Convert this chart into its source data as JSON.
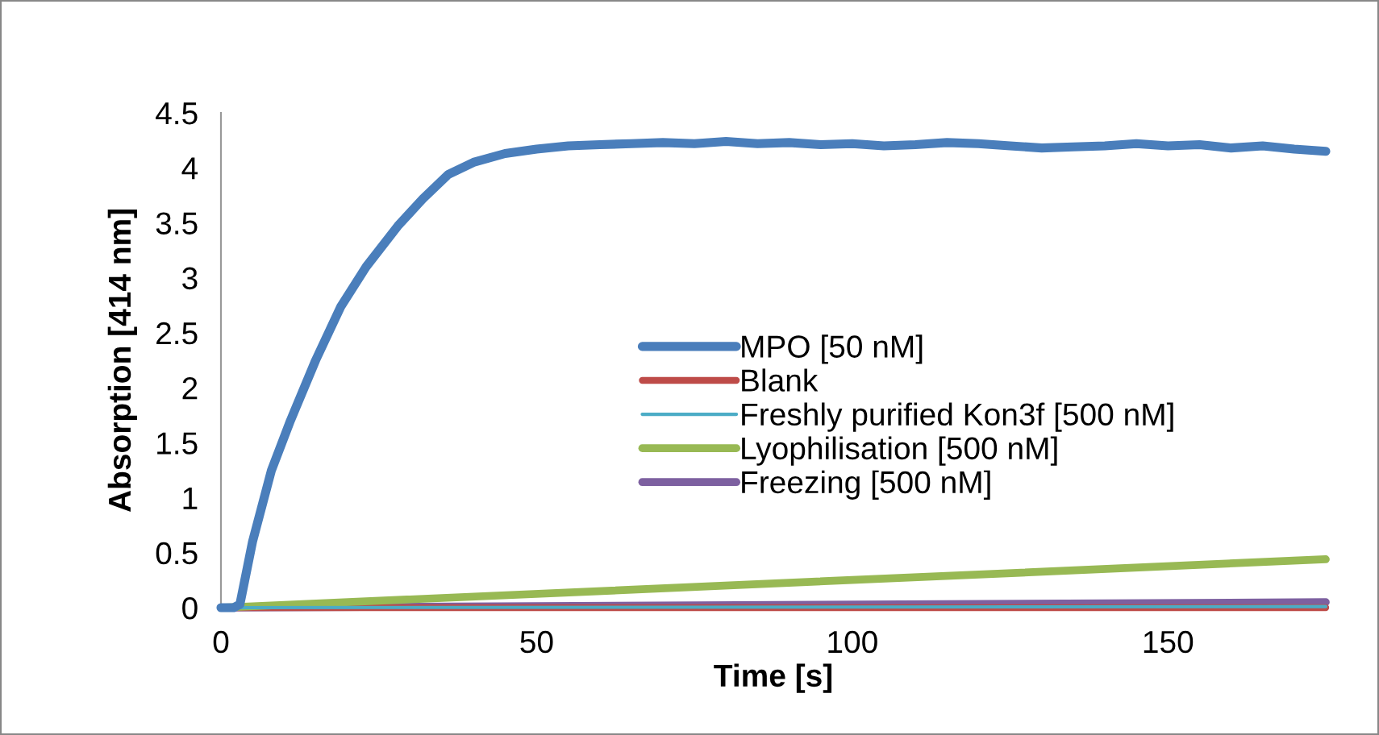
{
  "chart_data": {
    "type": "line",
    "xlabel": "Time [s]",
    "ylabel": "Absorption [414 nm]",
    "xlim": [
      0,
      175
    ],
    "xticks": [
      0,
      50,
      100,
      150
    ],
    "ylim": [
      0,
      4.5
    ],
    "yticks": [
      0,
      0.5,
      1,
      1.5,
      2,
      2.5,
      3,
      3.5,
      4,
      4.5
    ],
    "grid": false,
    "legend": "center right",
    "marker": "none",
    "line_style": "solid",
    "series": [
      {
        "name": "MPO [50 nM]",
        "color": "#4a7ebb",
        "x": [
          0,
          2,
          3,
          5,
          8,
          11,
          15,
          19,
          23,
          28,
          32,
          36,
          40,
          45,
          50,
          55,
          60,
          65,
          70,
          75,
          80,
          85,
          90,
          95,
          100,
          105,
          110,
          115,
          120,
          125,
          130,
          135,
          140,
          145,
          150,
          155,
          160,
          165,
          170,
          175
        ],
        "values": [
          0,
          0,
          0.03,
          0.6,
          1.25,
          1.7,
          2.25,
          2.74,
          3.1,
          3.47,
          3.72,
          3.94,
          4.05,
          4.13,
          4.17,
          4.2,
          4.21,
          4.22,
          4.23,
          4.22,
          4.24,
          4.22,
          4.23,
          4.21,
          4.22,
          4.2,
          4.21,
          4.23,
          4.22,
          4.2,
          4.18,
          4.19,
          4.2,
          4.22,
          4.2,
          4.21,
          4.18,
          4.2,
          4.17,
          4.15
        ]
      },
      {
        "name": "Blank",
        "color": "#be4b48",
        "x": [
          0,
          175
        ],
        "values": [
          0,
          0
        ]
      },
      {
        "name": "Freshly purified Kon3f [500 nM]",
        "color": "#4bacc6",
        "x": [
          0,
          175
        ],
        "values": [
          0,
          0.01
        ]
      },
      {
        "name": "Lyophilisation [500 nM]",
        "color": "#98b954",
        "x": [
          0,
          175
        ],
        "values": [
          0,
          0.44
        ]
      },
      {
        "name": "Freezing [500 nM]",
        "color": "#7d60a0",
        "x": [
          0,
          175
        ],
        "values": [
          0,
          0.05
        ]
      }
    ]
  }
}
